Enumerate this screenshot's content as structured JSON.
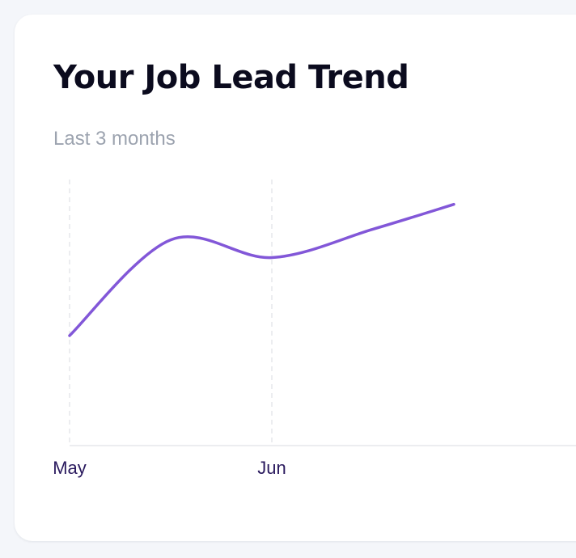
{
  "card": {
    "title": "Your Job Lead Trend",
    "subtitle": "Last 3 months"
  },
  "colors": {
    "line": "#8257d8",
    "tick_label": "#2a1a5e",
    "grid": "#e5e7eb",
    "axis": "#e5e7eb"
  },
  "chart_data": {
    "type": "line",
    "title": "Your Job Lead Trend",
    "subtitle": "Last 3 months",
    "xlabel": "",
    "ylabel": "",
    "x_ticks": [
      "May",
      "Jun"
    ],
    "x": [
      0,
      0.5,
      1,
      1.5,
      1.9
    ],
    "series": [
      {
        "values": [
          31,
          58,
          53,
          61,
          68
        ]
      }
    ],
    "ylim": [
      0,
      75
    ],
    "grid": "vertical dashed lines at month ticks",
    "legend": "none"
  }
}
